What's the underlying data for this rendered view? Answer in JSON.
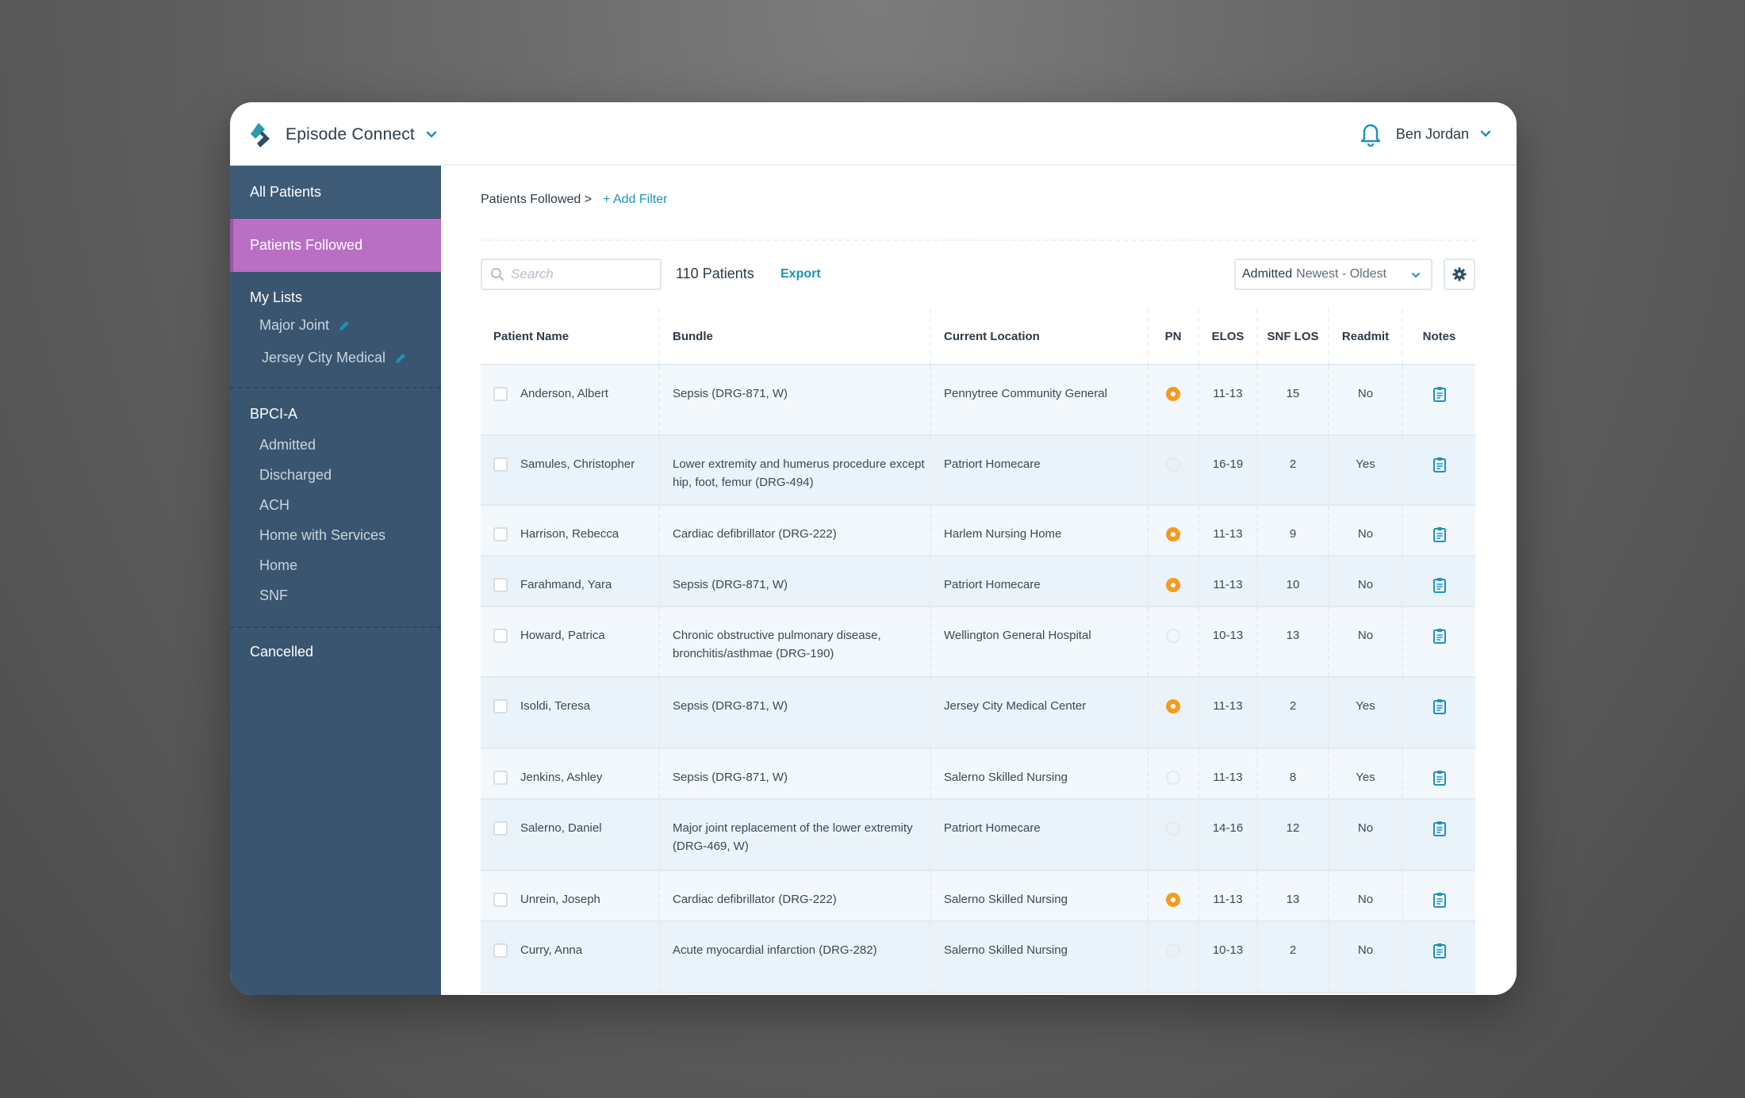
{
  "app": {
    "name": "Episode Connect",
    "user": "Ben Jordan",
    "colors": {
      "accent": "#1e93b8",
      "sidebar": "#3a5570",
      "selected": "#b96fc4",
      "pn_flag": "#f59b22"
    }
  },
  "sidebar": {
    "all_patients": "All Patients",
    "patients_followed": "Patients Followed",
    "my_lists_heading": "My Lists",
    "my_lists": [
      "Major Joint",
      "Jersey City Medical"
    ],
    "bpci_heading": "BPCI-A",
    "bpci_items": [
      "Admitted",
      "Discharged",
      "ACH",
      "Home with Services",
      "Home",
      "SNF"
    ],
    "cancelled": "Cancelled"
  },
  "breadcrumb": {
    "current": "Patients Followed >",
    "add_filter": "+ Add Filter"
  },
  "toolbar": {
    "search_placeholder": "Search",
    "count": "110 Patients",
    "export": "Export",
    "sort_field": "Admitted",
    "sort_order": "Newest - Oldest"
  },
  "table": {
    "headers": {
      "name": "Patient Name",
      "bundle": "Bundle",
      "location": "Current Location",
      "pn": "PN",
      "elos": "ELOS",
      "snf_los": "SNF LOS",
      "readmit": "Readmit",
      "notes": "Notes"
    },
    "rows": [
      {
        "name": "Anderson, Albert",
        "bundle": "Sepsis (DRG-871, W)",
        "location": "Pennytree Community General",
        "pn": true,
        "elos": "11-13",
        "snf_los": "15",
        "readmit": "No"
      },
      {
        "name": "Samules, Christopher",
        "bundle": "Lower extremity and humerus procedure except hip, foot, femur (DRG-494)",
        "location": "Patriort Homecare",
        "pn": false,
        "elos": "16-19",
        "snf_los": "2",
        "readmit": "Yes"
      },
      {
        "name": "Harrison, Rebecca",
        "bundle": "Cardiac defibrillator (DRG-222)",
        "location": "Harlem Nursing Home",
        "pn": true,
        "elos": "11-13",
        "snf_los": "9",
        "readmit": "No"
      },
      {
        "name": "Farahmand, Yara",
        "bundle": "Sepsis (DRG-871, W)",
        "location": "Patriort Homecare",
        "pn": true,
        "elos": "11-13",
        "snf_los": "10",
        "readmit": "No"
      },
      {
        "name": "Howard, Patrica",
        "bundle": "Chronic obstructive pulmonary disease, bronchitis/asthmae (DRG-190)",
        "location": "Wellington General Hospital",
        "pn": false,
        "elos": "10-13",
        "snf_los": "13",
        "readmit": "No"
      },
      {
        "name": "Isoldi, Teresa",
        "bundle": "Sepsis (DRG-871, W)",
        "location": "Jersey City Medical Center",
        "pn": true,
        "elos": "11-13",
        "snf_los": "2",
        "readmit": "Yes"
      },
      {
        "name": "Jenkins, Ashley",
        "bundle": "Sepsis (DRG-871, W)",
        "location": "Salerno Skilled Nursing",
        "pn": false,
        "elos": "11-13",
        "snf_los": "8",
        "readmit": "Yes"
      },
      {
        "name": "Salerno, Daniel",
        "bundle": "Major joint replacement of the lower extremity (DRG-469, W)",
        "location": "Patriort Homecare",
        "pn": false,
        "elos": "14-16",
        "snf_los": "12",
        "readmit": "No"
      },
      {
        "name": "Unrein, Joseph",
        "bundle": "Cardiac defibrillator (DRG-222)",
        "location": "Salerno Skilled Nursing",
        "pn": true,
        "elos": "11-13",
        "snf_los": "13",
        "readmit": "No"
      },
      {
        "name": "Curry, Anna",
        "bundle": "Acute myocardial infarction (DRG-282)",
        "location": "Salerno Skilled Nursing",
        "pn": false,
        "elos": "10-13",
        "snf_los": "2",
        "readmit": "No"
      }
    ]
  }
}
